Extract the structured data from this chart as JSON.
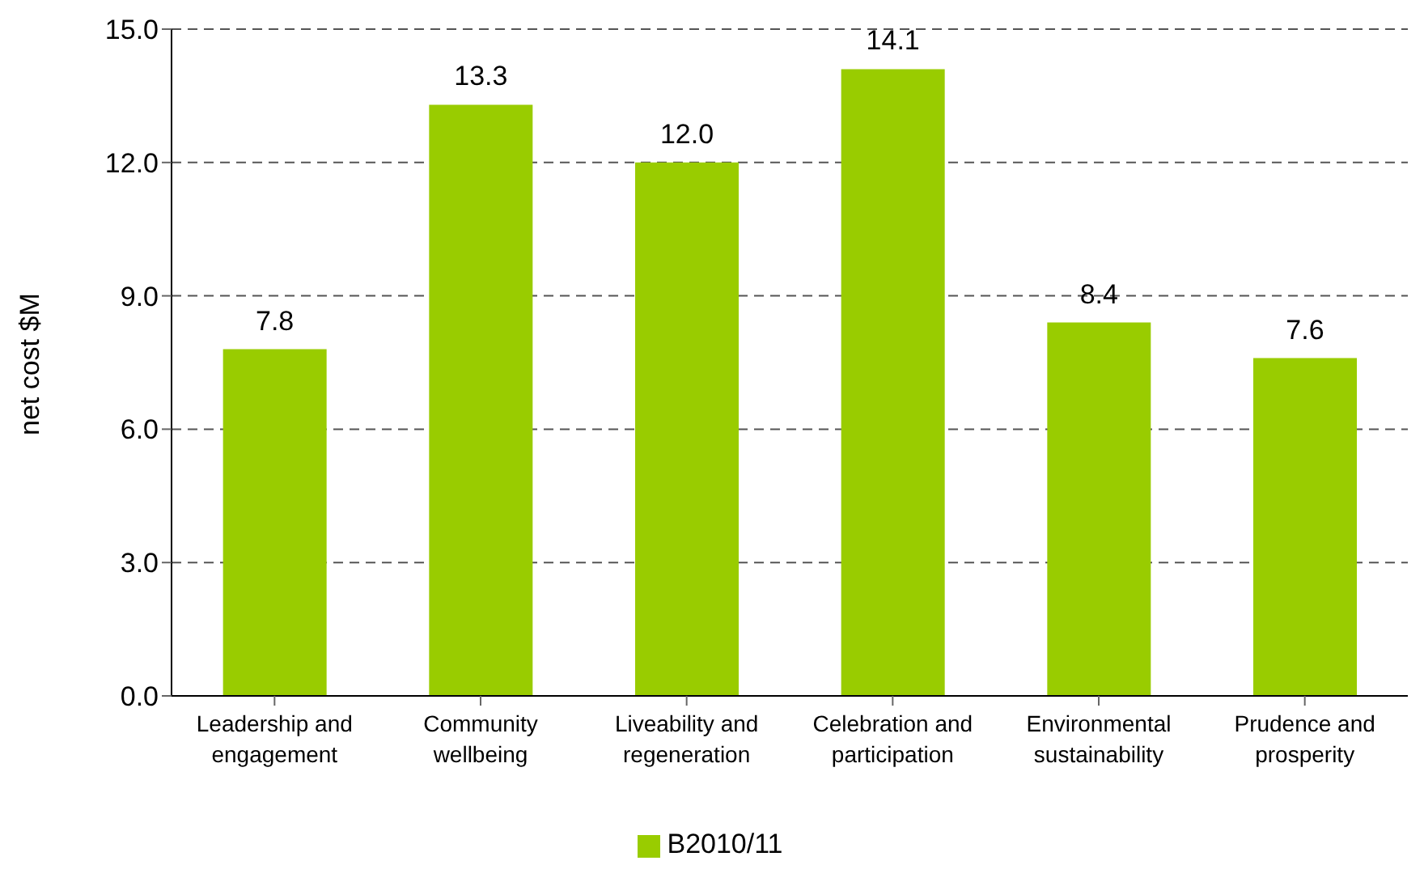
{
  "chart_data": {
    "type": "bar",
    "categories": [
      "Leadership and engagement",
      "Community wellbeing",
      "Liveability and regeneration",
      "Celebration and participation",
      "Environmental sustainability",
      "Prudence and prosperity"
    ],
    "series": [
      {
        "name": "B2010/11",
        "color": "#99cc00",
        "values": [
          7.8,
          13.3,
          12.0,
          14.1,
          8.4,
          7.6
        ],
        "value_labels": [
          "7.8",
          "13.3",
          "12.0",
          "14.1",
          "8.4",
          "7.6"
        ]
      }
    ],
    "ylabel": "net cost $M",
    "ylim": [
      0,
      15
    ],
    "yticks": [
      {
        "value": 0,
        "label": "0.0"
      },
      {
        "value": 3,
        "label": "3.0"
      },
      {
        "value": 6,
        "label": "6.0"
      },
      {
        "value": 9,
        "label": "9.0"
      },
      {
        "value": 12,
        "label": "12.0"
      },
      {
        "value": 15,
        "label": "15.0"
      }
    ],
    "grid": "y",
    "legend": "bottom"
  }
}
